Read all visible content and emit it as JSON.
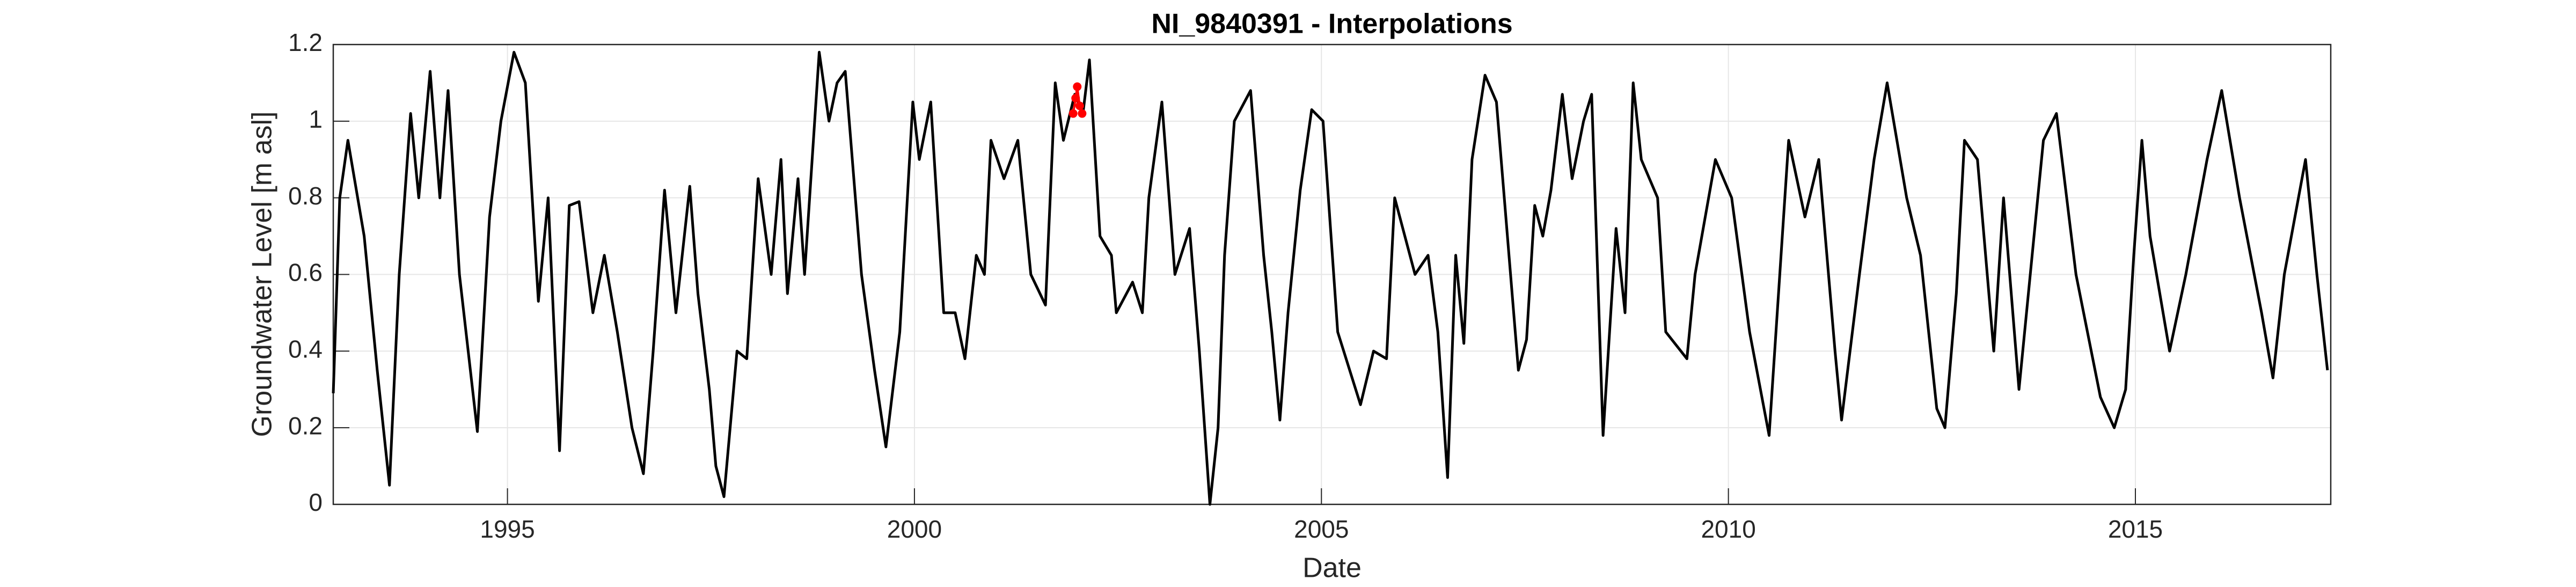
{
  "chart_data": {
    "type": "line",
    "title": "NI_9840391 - Interpolations",
    "xlabel": "Date",
    "ylabel": "Groundwater Level [m asl]",
    "xlim": [
      1992.86,
      2017.4
    ],
    "xticks": [
      1995,
      2000,
      2005,
      2010,
      2015
    ],
    "ylim": [
      0,
      1.2
    ],
    "yticks": [
      0,
      0.2,
      0.4,
      0.6,
      0.8,
      1,
      1.2
    ],
    "grid": true,
    "series": [
      {
        "color": "#000000",
        "marker": false,
        "x": [
          1992.86,
          1992.94,
          1993.04,
          1993.12,
          1993.24,
          1993.4,
          1993.55,
          1993.67,
          1993.81,
          1993.91,
          1994.05,
          1994.17,
          1994.27,
          1994.41,
          1994.63,
          1994.78,
          1994.92,
          1995.08,
          1995.22,
          1995.38,
          1995.5,
          1995.64,
          1995.76,
          1995.88,
          1996.05,
          1996.19,
          1996.35,
          1996.53,
          1996.67,
          1996.79,
          1996.93,
          1997.07,
          1997.24,
          1997.34,
          1997.48,
          1997.56,
          1997.66,
          1997.82,
          1997.94,
          1998.08,
          1998.24,
          1998.36,
          1998.44,
          1998.57,
          1998.65,
          1998.83,
          1998.95,
          1999.05,
          1999.15,
          1999.35,
          1999.51,
          1999.65,
          1999.82,
          1999.98,
          2000.06,
          2000.2,
          2000.36,
          2000.5,
          2000.62,
          2000.76,
          2000.86,
          2000.94,
          2001.1,
          2001.27,
          2001.43,
          2001.61,
          2001.73,
          2001.83,
          2001.97,
          2002.07,
          2002.15,
          2002.28,
          2002.42,
          2002.48,
          2002.68,
          2002.8,
          2002.88,
          2003.04,
          2003.2,
          2003.38,
          2003.5,
          2003.63,
          2003.73,
          2003.81,
          2003.93,
          2004.13,
          2004.29,
          2004.39,
          2004.49,
          2004.59,
          2004.74,
          2004.88,
          2005.02,
          2005.2,
          2005.48,
          2005.64,
          2005.8,
          2005.9,
          2006.15,
          2006.31,
          2006.43,
          2006.55,
          2006.65,
          2006.75,
          2006.85,
          2007.01,
          2007.15,
          2007.42,
          2007.52,
          2007.62,
          2007.72,
          2007.82,
          2007.96,
          2008.08,
          2008.22,
          2008.32,
          2008.46,
          2008.62,
          2008.73,
          2008.83,
          2008.93,
          2009.13,
          2009.23,
          2009.49,
          2009.59,
          2009.84,
          2010.04,
          2010.26,
          2010.5,
          2010.74,
          2010.94,
          2011.11,
          2011.31,
          2011.39,
          2011.61,
          2011.79,
          2011.95,
          2012.19,
          2012.36,
          2012.56,
          2012.66,
          2012.8,
          2012.9,
          2013.06,
          2013.26,
          2013.38,
          2013.57,
          2013.87,
          2014.03,
          2014.27,
          2014.57,
          2014.74,
          2014.88,
          2014.98,
          2015.08,
          2015.18,
          2015.42,
          2015.62,
          2015.88,
          2016.06,
          2016.28,
          2016.55,
          2016.69,
          2016.83,
          2017.09,
          2017.23,
          2017.36
        ],
        "values": [
          0.29,
          0.8,
          0.95,
          0.85,
          0.7,
          0.35,
          0.05,
          0.6,
          1.02,
          0.8,
          1.13,
          0.8,
          1.08,
          0.6,
          0.19,
          0.75,
          1.0,
          1.18,
          1.1,
          0.53,
          0.8,
          0.14,
          0.78,
          0.79,
          0.5,
          0.65,
          0.45,
          0.2,
          0.08,
          0.4,
          0.82,
          0.5,
          0.83,
          0.55,
          0.3,
          0.1,
          0.02,
          0.4,
          0.38,
          0.85,
          0.6,
          0.9,
          0.55,
          0.85,
          0.6,
          1.18,
          1.0,
          1.1,
          1.13,
          0.6,
          0.35,
          0.15,
          0.45,
          1.05,
          0.9,
          1.05,
          0.5,
          0.5,
          0.38,
          0.65,
          0.6,
          0.95,
          0.85,
          0.95,
          0.6,
          0.52,
          1.1,
          0.95,
          1.07,
          1.02,
          1.16,
          0.7,
          0.65,
          0.5,
          0.58,
          0.5,
          0.8,
          1.05,
          0.6,
          0.72,
          0.4,
          0.0,
          0.2,
          0.65,
          1.0,
          1.08,
          0.65,
          0.45,
          0.22,
          0.5,
          0.82,
          1.03,
          1.0,
          0.45,
          0.26,
          0.4,
          0.38,
          0.8,
          0.6,
          0.65,
          0.45,
          0.07,
          0.65,
          0.42,
          0.9,
          1.12,
          1.05,
          0.35,
          0.43,
          0.78,
          0.7,
          0.82,
          1.07,
          0.85,
          1.0,
          1.07,
          0.18,
          0.72,
          0.5,
          1.1,
          0.9,
          0.8,
          0.45,
          0.38,
          0.6,
          0.9,
          0.8,
          0.45,
          0.18,
          0.95,
          0.75,
          0.9,
          0.4,
          0.22,
          0.6,
          0.9,
          1.1,
          0.8,
          0.65,
          0.25,
          0.2,
          0.55,
          0.95,
          0.9,
          0.4,
          0.8,
          0.3,
          0.95,
          1.02,
          0.6,
          0.28,
          0.2,
          0.3,
          0.65,
          0.95,
          0.7,
          0.4,
          0.6,
          0.9,
          1.08,
          0.8,
          0.5,
          0.33,
          0.6,
          0.9,
          0.6,
          0.35
        ]
      },
      {
        "color": "#ff0000",
        "marker": true,
        "x": [
          2001.95,
          2001.98,
          2002.0,
          2002.03,
          2002.06
        ],
        "values": [
          1.02,
          1.06,
          1.09,
          1.04,
          1.02
        ]
      }
    ]
  }
}
